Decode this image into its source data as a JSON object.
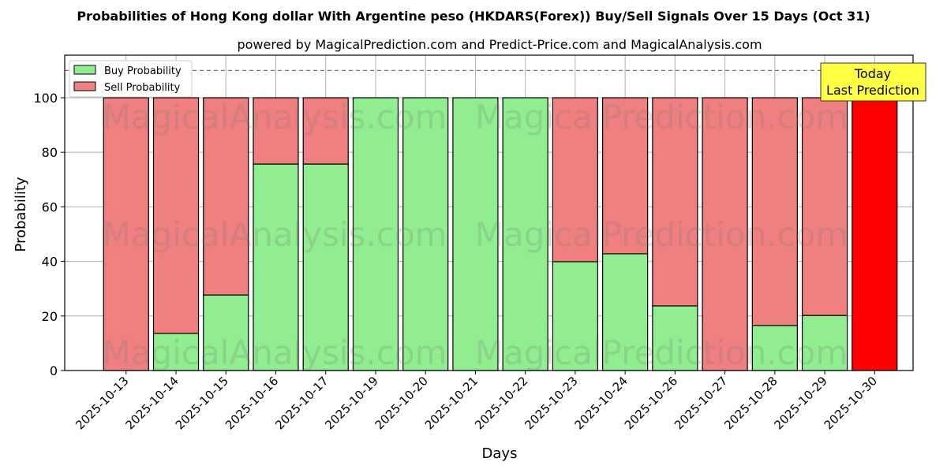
{
  "chart_data": {
    "type": "bar",
    "stacked": true,
    "title": "Probabilities of Hong Kong dollar With Argentine peso (HKDARS(Forex)) Buy/Sell Signals Over 15 Days (Oct 31)",
    "subtitle": "powered by MagicalPrediction.com and Predict-Price.com and MagicalAnalysis.com",
    "xlabel": "Days",
    "ylabel": "Probability",
    "ylim": [
      0,
      115.6
    ],
    "yticks": [
      0,
      20,
      40,
      60,
      80,
      100
    ],
    "grid": true,
    "legend_placement": "top-left",
    "reference_line": 110,
    "categories": [
      "2025-10-13",
      "2025-10-14",
      "2025-10-15",
      "2025-10-16",
      "2025-10-17",
      "2025-10-19",
      "2025-10-20",
      "2025-10-21",
      "2025-10-22",
      "2025-10-23",
      "2025-10-24",
      "2025-10-26",
      "2025-10-27",
      "2025-10-28",
      "2025-10-29",
      "2025-10-30"
    ],
    "series": [
      {
        "name": "Buy Probability",
        "color": "#90ee90",
        "values": [
          0,
          13.6,
          27.7,
          75.7,
          75.7,
          100,
          100,
          100,
          100,
          39.9,
          42.8,
          23.7,
          0,
          16.5,
          20.2,
          0
        ]
      },
      {
        "name": "Sell Probability",
        "color": "#f08080",
        "values": [
          100,
          86.4,
          72.3,
          24.3,
          24.3,
          0,
          0,
          0,
          0,
          60.1,
          57.2,
          76.3,
          100,
          83.5,
          79.8,
          100
        ]
      }
    ],
    "highlight_color": "#ff0000",
    "annotation": {
      "line1": "Today",
      "line2": "Last Prediction"
    },
    "watermarks": [
      "MagicalAnalysis.com",
      "MagicalPrediction.com"
    ]
  }
}
